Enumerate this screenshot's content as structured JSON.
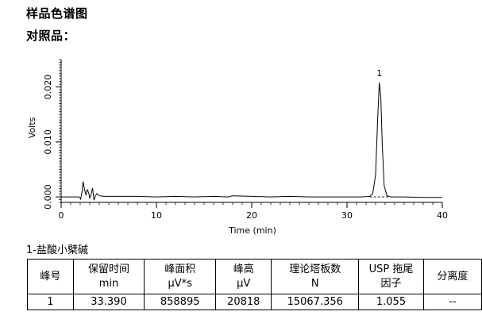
{
  "page": {
    "title": "样品色谱图",
    "subtitle": "对照品："
  },
  "chart_data": {
    "type": "line",
    "xlabel": "Time (min)",
    "ylabel": "Volts",
    "xlim": [
      0,
      40
    ],
    "ylim": [
      -0.001,
      0.025
    ],
    "xticks": [
      0,
      10,
      20,
      30,
      40
    ],
    "xtick_labels": [
      "0",
      "10",
      "20",
      "30",
      "40"
    ],
    "yticks": [
      0.0,
      0.01,
      0.02
    ],
    "ytick_labels": [
      "0.000",
      "0.010",
      "0.020"
    ],
    "grid": false,
    "series": [
      {
        "x": [
          0.0,
          1.5,
          1.9,
          2.05,
          2.2,
          2.3,
          2.45,
          2.6,
          2.75,
          2.9,
          3.0,
          3.15,
          3.3,
          3.45,
          3.6,
          3.75,
          4.0,
          4.5,
          6,
          8,
          10,
          12,
          14,
          16,
          17.5,
          18,
          20,
          22,
          24,
          26,
          28,
          30,
          31.5,
          32.4,
          32.7,
          33.0,
          33.2,
          33.39,
          33.55,
          33.7,
          33.9,
          34.2,
          34.6,
          36,
          38,
          40
        ],
        "y": [
          0.0,
          0.0,
          0.0,
          -0.0004,
          0.001,
          0.0028,
          0.0014,
          0.0004,
          0.0013,
          0.0007,
          -0.0002,
          0.0005,
          0.0016,
          -0.0006,
          0.0002,
          0.0006,
          0.0002,
          0.0001,
          0.0001,
          0.0001,
          0.0,
          0.0001,
          0.0,
          0.0001,
          0.0,
          0.0002,
          0.0001,
          0.0,
          0.0001,
          0.0,
          0.0,
          0.0,
          0.0,
          0.0001,
          0.0006,
          0.004,
          0.0135,
          0.0208,
          0.018,
          0.0095,
          0.002,
          0.0002,
          0.0,
          0.0,
          -0.0001,
          -0.0001
        ]
      }
    ],
    "baseline": {
      "x": [
        32.4,
        34.5
      ],
      "y": [
        0.0,
        0.0
      ]
    },
    "annotations": [
      {
        "text": "1",
        "x": 33.39,
        "y": 0.0208
      }
    ]
  },
  "compound": "1-盐酸小檗碱",
  "table": {
    "headers": [
      [
        "峰号"
      ],
      [
        "保留时间",
        "min"
      ],
      [
        "峰面积",
        "μV*s"
      ],
      [
        "峰高",
        "μV"
      ],
      [
        "理论塔板数",
        "N"
      ],
      [
        "USP 拖尾",
        "因子"
      ],
      [
        "分离度"
      ]
    ],
    "rows": [
      [
        "1",
        "33.390",
        "858895",
        "20818",
        "15067.356",
        "1.055",
        "--"
      ]
    ]
  }
}
